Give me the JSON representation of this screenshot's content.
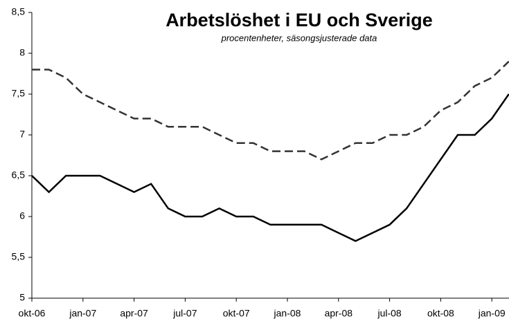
{
  "chart_data": {
    "type": "line",
    "title": "Arbetslöshet i EU och Sverige",
    "subtitle": "procentenheter, säsongsjusterade data",
    "categories": [
      "okt-06",
      null,
      null,
      "jan-07",
      null,
      null,
      "apr-07",
      null,
      null,
      "jul-07",
      null,
      null,
      "okt-07",
      null,
      null,
      "jan-08",
      null,
      null,
      "apr-08",
      null,
      null,
      "jul-08",
      null,
      null,
      "okt-08",
      null,
      null,
      "jan-09",
      null
    ],
    "series": [
      {
        "color": "#333333",
        "dashed": true,
        "values": [
          7.8,
          7.8,
          7.7,
          7.5,
          7.4,
          7.3,
          7.2,
          7.2,
          7.1,
          7.1,
          7.1,
          7.0,
          6.9,
          6.9,
          6.8,
          6.8,
          6.8,
          6.7,
          6.8,
          6.9,
          6.9,
          7.0,
          7.0,
          7.1,
          7.3,
          7.4,
          7.6,
          7.7,
          7.9
        ]
      },
      {
        "color": "#000000",
        "dashed": false,
        "values": [
          6.5,
          6.3,
          6.5,
          6.5,
          6.5,
          6.4,
          6.3,
          6.4,
          6.1,
          6.0,
          6.0,
          6.1,
          6.0,
          6.0,
          5.9,
          5.9,
          5.9,
          5.9,
          5.8,
          5.7,
          5.8,
          5.9,
          6.1,
          6.4,
          6.7,
          7.0,
          7.0,
          7.2,
          7.5
        ]
      }
    ],
    "ylim": [
      5,
      8.5
    ],
    "yticks": [
      5,
      {
        "value": 5.5,
        "label": "5,5"
      },
      6,
      {
        "value": 6.5,
        "label": "6,5"
      },
      7,
      {
        "value": 7.5,
        "label": "7,5"
      },
      8,
      {
        "value": 8.5,
        "label": "8,5"
      }
    ]
  }
}
